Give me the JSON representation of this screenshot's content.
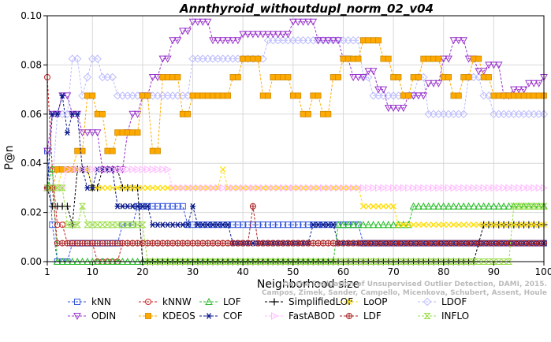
{
  "chart_data": {
    "type": "line",
    "title": "Annthyroid_withoutdupl_norm_02_v04",
    "xlabel": "Neighborhood size",
    "ylabel": "P@n",
    "xlim": [
      1,
      100
    ],
    "ylim": [
      0,
      0.1
    ],
    "xticks": [
      "1",
      "10",
      "20",
      "30",
      "40",
      "50",
      "60",
      "70",
      "80",
      "90",
      "100"
    ],
    "yticks": [
      "0.00",
      "0.02",
      "0.04",
      "0.06",
      "0.08",
      "0.10"
    ],
    "grid": true,
    "legend_position": "bottom",
    "credit_lines": [
      "Campos, Zimek, Sander, Campello, Micenkova, Schubert, Assent, Houle",
      "On the Evaluation of Unsupervised Outlier Detection, DAMI, 2015."
    ],
    "series": [
      {
        "name": "kNN",
        "color": "#3355dd",
        "marker": "square",
        "points": [
          [
            1,
            0.045
          ],
          [
            2,
            0.015
          ],
          [
            3,
            0.0
          ],
          [
            5,
            0.0
          ],
          [
            6,
            0.0075
          ],
          [
            15,
            0.0075
          ],
          [
            16,
            0.015
          ],
          [
            18,
            0.015
          ],
          [
            19,
            0.0225
          ],
          [
            28,
            0.0225
          ],
          [
            29,
            0.015
          ],
          [
            63,
            0.015
          ],
          [
            64,
            0.0075
          ],
          [
            100,
            0.0075
          ]
        ]
      },
      {
        "name": "kNNW",
        "color": "#cc2222",
        "marker": "circle",
        "points": [
          [
            1,
            0.075
          ],
          [
            2,
            0.0375
          ],
          [
            3,
            0.015
          ],
          [
            5,
            0.0075
          ],
          [
            10,
            0.0075
          ],
          [
            11,
            0.0
          ],
          [
            15,
            0.0
          ],
          [
            16,
            0.0075
          ],
          [
            100,
            0.0075
          ]
        ]
      },
      {
        "name": "LOF",
        "color": "#22bb22",
        "marker": "triangle-up",
        "points": [
          [
            1,
            0.03
          ],
          [
            2,
            0.0375
          ],
          [
            3,
            0.0
          ],
          [
            16,
            0.0
          ],
          [
            17,
            0.0
          ],
          [
            58,
            0.0
          ],
          [
            59,
            0.015
          ],
          [
            73,
            0.015
          ],
          [
            74,
            0.0225
          ],
          [
            100,
            0.0225
          ]
        ]
      },
      {
        "name": "SimplifiedLOF",
        "color": "#000000",
        "marker": "plus",
        "points": [
          [
            1,
            0.03
          ],
          [
            2,
            0.0225
          ],
          [
            5,
            0.0225
          ],
          [
            6,
            0.015
          ],
          [
            7,
            0.0375
          ],
          [
            9,
            0.0375
          ],
          [
            10,
            0.03
          ],
          [
            11,
            0.03
          ],
          [
            12,
            0.0375
          ],
          [
            15,
            0.0375
          ],
          [
            16,
            0.03
          ],
          [
            19,
            0.03
          ],
          [
            20,
            0.0
          ],
          [
            86,
            0.0
          ],
          [
            87,
            0.0075
          ],
          [
            88,
            0.015
          ],
          [
            100,
            0.015
          ]
        ]
      },
      {
        "name": "LoOP",
        "color": "#ffdd00",
        "marker": "x",
        "points": [
          [
            1,
            0.03
          ],
          [
            4,
            0.0375
          ],
          [
            8,
            0.0375
          ],
          [
            10,
            0.03
          ],
          [
            20,
            0.03
          ],
          [
            23,
            0.03
          ],
          [
            35,
            0.03
          ],
          [
            36,
            0.0375
          ],
          [
            37,
            0.03
          ],
          [
            63,
            0.03
          ],
          [
            64,
            0.0225
          ],
          [
            70,
            0.0225
          ],
          [
            71,
            0.015
          ],
          [
            100,
            0.015
          ]
        ]
      },
      {
        "name": "LDOF",
        "color": "#bbbbff",
        "marker": "diamond",
        "points": [
          [
            1,
            0.03
          ],
          [
            3,
            0.06
          ],
          [
            6,
            0.0825
          ],
          [
            8,
            0.0675
          ],
          [
            9,
            0.075
          ],
          [
            10,
            0.0825
          ],
          [
            12,
            0.075
          ],
          [
            15,
            0.0675
          ],
          [
            20,
            0.0675
          ],
          [
            25,
            0.0675
          ],
          [
            30,
            0.0825
          ],
          [
            35,
            0.0825
          ],
          [
            40,
            0.0825
          ],
          [
            45,
            0.09
          ],
          [
            60,
            0.09
          ],
          [
            62,
            0.09
          ],
          [
            64,
            0.075
          ],
          [
            66,
            0.0675
          ],
          [
            70,
            0.0675
          ],
          [
            75,
            0.075
          ],
          [
            77,
            0.06
          ],
          [
            80,
            0.06
          ],
          [
            85,
            0.075
          ],
          [
            88,
            0.0675
          ],
          [
            90,
            0.06
          ],
          [
            95,
            0.06
          ],
          [
            100,
            0.06
          ]
        ]
      },
      {
        "name": "ODIN",
        "color": "#9933cc",
        "marker": "triangle-down",
        "points": [
          [
            1,
            0.045
          ],
          [
            2,
            0.06
          ],
          [
            4,
            0.0675
          ],
          [
            6,
            0.06
          ],
          [
            8,
            0.0525
          ],
          [
            10,
            0.0525
          ],
          [
            12,
            0.0375
          ],
          [
            15,
            0.0375
          ],
          [
            17,
            0.0525
          ],
          [
            18,
            0.06
          ],
          [
            20,
            0.0675
          ],
          [
            22,
            0.075
          ],
          [
            24,
            0.0825
          ],
          [
            26,
            0.09
          ],
          [
            28,
            0.0938
          ],
          [
            30,
            0.0975
          ],
          [
            34,
            0.09
          ],
          [
            40,
            0.0925
          ],
          [
            45,
            0.0925
          ],
          [
            50,
            0.0975
          ],
          [
            55,
            0.09
          ],
          [
            60,
            0.0825
          ],
          [
            62,
            0.075
          ],
          [
            65,
            0.0775
          ],
          [
            67,
            0.07
          ],
          [
            69,
            0.0625
          ],
          [
            73,
            0.0675
          ],
          [
            77,
            0.0725
          ],
          [
            80,
            0.0825
          ],
          [
            82,
            0.09
          ],
          [
            85,
            0.0825
          ],
          [
            87,
            0.0775
          ],
          [
            89,
            0.08
          ],
          [
            92,
            0.0675
          ],
          [
            94,
            0.07
          ],
          [
            97,
            0.0725
          ],
          [
            100,
            0.075
          ]
        ]
      },
      {
        "name": "KDEOS",
        "color": "#ffaa00",
        "marker": "square-filled",
        "points": [
          [
            1,
            0.03
          ],
          [
            3,
            0.0375
          ],
          [
            5,
            0.0375
          ],
          [
            7,
            0.045
          ],
          [
            9,
            0.0675
          ],
          [
            11,
            0.06
          ],
          [
            13,
            0.045
          ],
          [
            15,
            0.0525
          ],
          [
            18,
            0.0525
          ],
          [
            20,
            0.0675
          ],
          [
            22,
            0.045
          ],
          [
            24,
            0.075
          ],
          [
            26,
            0.075
          ],
          [
            28,
            0.06
          ],
          [
            30,
            0.0675
          ],
          [
            32,
            0.0675
          ],
          [
            34,
            0.0675
          ],
          [
            36,
            0.0675
          ],
          [
            38,
            0.075
          ],
          [
            40,
            0.0825
          ],
          [
            42,
            0.0825
          ],
          [
            44,
            0.0675
          ],
          [
            46,
            0.075
          ],
          [
            48,
            0.075
          ],
          [
            50,
            0.0675
          ],
          [
            52,
            0.06
          ],
          [
            54,
            0.0675
          ],
          [
            56,
            0.06
          ],
          [
            58,
            0.075
          ],
          [
            60,
            0.0825
          ],
          [
            62,
            0.0825
          ],
          [
            64,
            0.09
          ],
          [
            66,
            0.09
          ],
          [
            68,
            0.0825
          ],
          [
            70,
            0.075
          ],
          [
            72,
            0.0675
          ],
          [
            74,
            0.075
          ],
          [
            76,
            0.0825
          ],
          [
            78,
            0.0825
          ],
          [
            80,
            0.075
          ],
          [
            82,
            0.0675
          ],
          [
            84,
            0.075
          ],
          [
            86,
            0.0825
          ],
          [
            88,
            0.075
          ],
          [
            90,
            0.0675
          ],
          [
            92,
            0.0675
          ],
          [
            94,
            0.0675
          ],
          [
            96,
            0.0675
          ],
          [
            98,
            0.0675
          ],
          [
            100,
            0.0675
          ]
        ]
      },
      {
        "name": "COF",
        "color": "#0a1a8a",
        "marker": "asterisk",
        "points": [
          [
            1,
            0.03
          ],
          [
            2,
            0.06
          ],
          [
            3,
            0.06
          ],
          [
            4,
            0.0675
          ],
          [
            5,
            0.0525
          ],
          [
            6,
            0.06
          ],
          [
            8,
            0.0375
          ],
          [
            9,
            0.03
          ],
          [
            10,
            0.03
          ],
          [
            11,
            0.0375
          ],
          [
            14,
            0.0375
          ],
          [
            15,
            0.0225
          ],
          [
            20,
            0.0225
          ],
          [
            22,
            0.015
          ],
          [
            29,
            0.015
          ],
          [
            30,
            0.0225
          ],
          [
            31,
            0.015
          ],
          [
            37,
            0.015
          ],
          [
            38,
            0.0075
          ],
          [
            53,
            0.0075
          ],
          [
            54,
            0.015
          ],
          [
            58,
            0.015
          ],
          [
            59,
            0.0075
          ],
          [
            100,
            0.0075
          ]
        ]
      },
      {
        "name": "FastABOD",
        "color": "#ffbbff",
        "marker": "triangle-right",
        "points": [
          [
            1,
            0.03
          ],
          [
            5,
            0.0375
          ],
          [
            10,
            0.0375
          ],
          [
            20,
            0.0375
          ],
          [
            25,
            0.0375
          ],
          [
            26,
            0.03
          ],
          [
            60,
            0.03
          ],
          [
            63,
            0.03
          ],
          [
            100,
            0.03
          ]
        ]
      },
      {
        "name": "LDF",
        "color": "#aa2222",
        "marker": "circle-plus",
        "points": [
          [
            1,
            0.03
          ],
          [
            3,
            0.0075
          ],
          [
            30,
            0.0075
          ],
          [
            38,
            0.0075
          ],
          [
            40,
            0.0075
          ],
          [
            42,
            0.0225
          ],
          [
            43,
            0.0075
          ],
          [
            100,
            0.0075
          ]
        ]
      },
      {
        "name": "INFLO",
        "color": "#99dd44",
        "marker": "hourglass",
        "points": [
          [
            1,
            0.03
          ],
          [
            5,
            0.015
          ],
          [
            7,
            0.015
          ],
          [
            8,
            0.0225
          ],
          [
            9,
            0.015
          ],
          [
            15,
            0.015
          ],
          [
            20,
            0.015
          ],
          [
            21,
            0.0
          ],
          [
            65,
            0.0
          ],
          [
            66,
            0.0
          ],
          [
            93,
            0.0
          ],
          [
            94,
            0.0225
          ],
          [
            100,
            0.0225
          ]
        ]
      }
    ]
  }
}
